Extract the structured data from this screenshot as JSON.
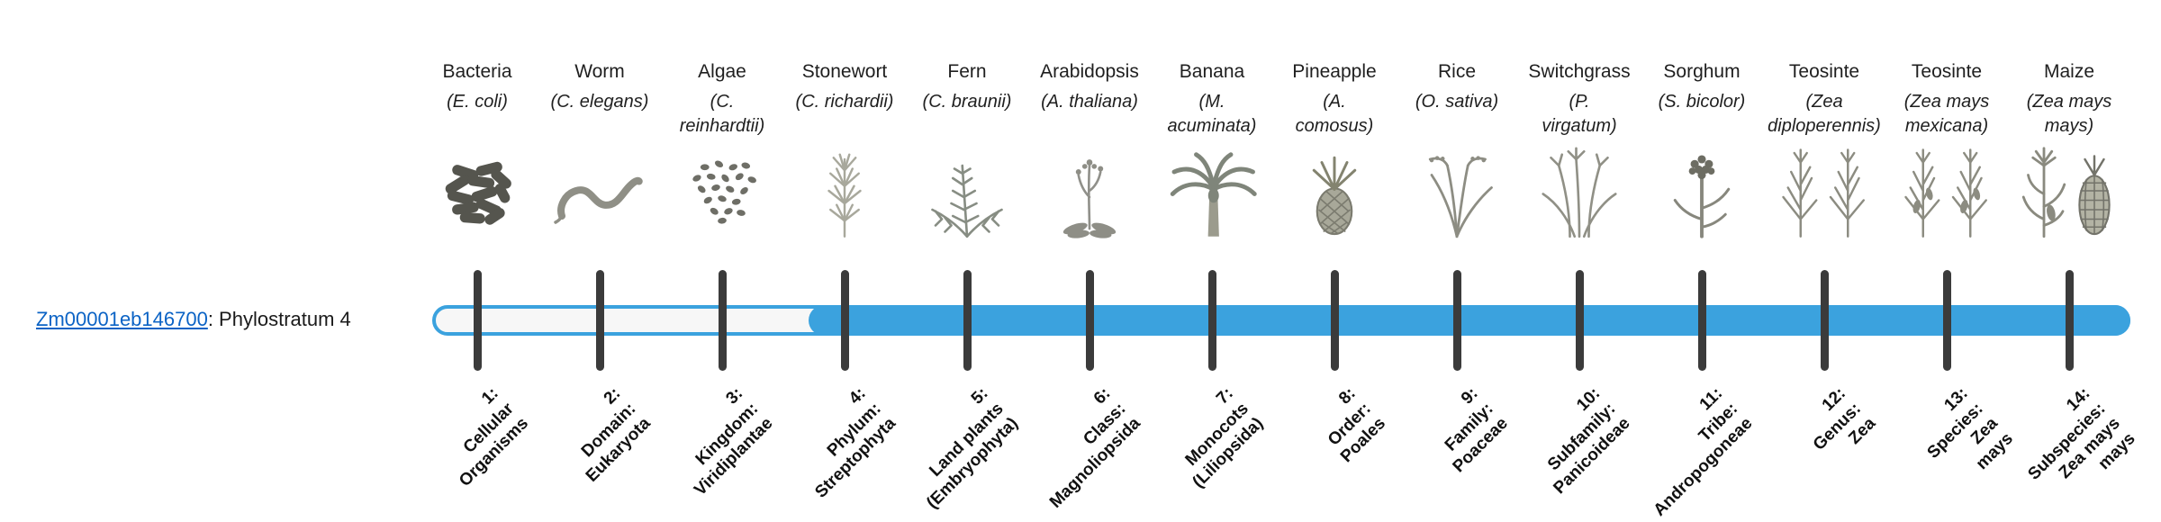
{
  "gene": {
    "link_text": "Zm00001eb146700",
    "suffix": ": Phylostratum 4"
  },
  "figure": {
    "type": "phylostratum-timeline",
    "current_phylostratum": 4,
    "total_phylostrata": 14,
    "filled_range": [
      4,
      14
    ],
    "bar_color": "#3ba2de",
    "tick_color": "#3b3b3b",
    "link_color": "#0b63c5"
  },
  "organisms": [
    {
      "stratum": 1,
      "common_name": "Bacteria",
      "scientific_name": "(E. coli)",
      "icon": "bacteria-icon",
      "stratum_label": "1:\nCellular\nOrganisms",
      "in_filled_range": false
    },
    {
      "stratum": 2,
      "common_name": "Worm",
      "scientific_name": "(C. elegans)",
      "icon": "worm-icon",
      "stratum_label": "2:\nDomain:\nEukaryota",
      "in_filled_range": false
    },
    {
      "stratum": 3,
      "common_name": "Algae",
      "scientific_name": "(C.\nreinhardtii)",
      "icon": "algae-icon",
      "stratum_label": "3:\nKingdom:\nViridiplantae",
      "in_filled_range": false
    },
    {
      "stratum": 4,
      "common_name": "Stonewort",
      "scientific_name": "(C. richardii)",
      "icon": "stonewort-icon",
      "stratum_label": "4:\nPhylum:\nStreptophyta",
      "in_filled_range": true
    },
    {
      "stratum": 5,
      "common_name": "Fern",
      "scientific_name": "(C. braunii)",
      "icon": "fern-icon",
      "stratum_label": "5:\nLand plants\n(Embryophyta)",
      "in_filled_range": true
    },
    {
      "stratum": 6,
      "common_name": "Arabidopsis",
      "scientific_name": "(A. thaliana)",
      "icon": "arabidopsis-icon",
      "stratum_label": "6:\nClass:\nMagnoliopsida",
      "in_filled_range": true
    },
    {
      "stratum": 7,
      "common_name": "Banana",
      "scientific_name": "(M.\nacuminata)",
      "icon": "banana-icon",
      "stratum_label": "7:\nMonocots\n(Liliopsida)",
      "in_filled_range": true
    },
    {
      "stratum": 8,
      "common_name": "Pineapple",
      "scientific_name": "(A.\ncomosus)",
      "icon": "pineapple-icon",
      "stratum_label": "8:\nOrder:\nPoales",
      "in_filled_range": true
    },
    {
      "stratum": 9,
      "common_name": "Rice",
      "scientific_name": "(O. sativa)",
      "icon": "rice-icon",
      "stratum_label": "9:\nFamily:\nPoaceae",
      "in_filled_range": true
    },
    {
      "stratum": 10,
      "common_name": "Switchgrass",
      "scientific_name": "(P.\nvirgatum)",
      "icon": "switchgrass-icon",
      "stratum_label": "10:\nSubfamily:\nPanicoideae",
      "in_filled_range": true
    },
    {
      "stratum": 11,
      "common_name": "Sorghum",
      "scientific_name": "(S. bicolor)",
      "icon": "sorghum-icon",
      "stratum_label": "11:\nTribe:\nAndropogoneae",
      "in_filled_range": true
    },
    {
      "stratum": 12,
      "common_name": "Teosinte",
      "scientific_name": "(Zea\ndiploperennis)",
      "icon": "teosinte-diploperennis-icon",
      "stratum_label": "12:\nGenus:\nZea",
      "in_filled_range": true
    },
    {
      "stratum": 13,
      "common_name": "Teosinte",
      "scientific_name": "(Zea mays\nmexicana)",
      "icon": "teosinte-mexicana-icon",
      "stratum_label": "13:\nSpecies:\nZea\nmays",
      "in_filled_range": true
    },
    {
      "stratum": 14,
      "common_name": "Maize",
      "scientific_name": "(Zea mays\nmays)",
      "icon": "maize-icon",
      "stratum_label": "14:\nSubspecies:\nZea mays\nmays",
      "in_filled_range": true
    }
  ]
}
